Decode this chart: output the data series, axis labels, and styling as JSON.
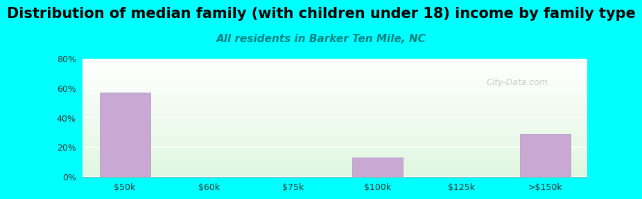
{
  "title": "Distribution of median family (with children under 18) income by family type",
  "subtitle": "All residents in Barker Ten Mile, NC",
  "categories": [
    "$50k",
    "$60k",
    "$75k",
    "$100k",
    "$125k",
    ">$150k"
  ],
  "values": [
    57.1,
    0.0,
    0.0,
    12.9,
    0.0,
    29.0
  ],
  "bar_color": "#c9a8d4",
  "bar_edge_color": "#b090bf",
  "ylim": [
    0,
    80
  ],
  "yticks": [
    0,
    20,
    40,
    60,
    80
  ],
  "ytick_labels": [
    "0%",
    "20%",
    "40%",
    "60%",
    "80%"
  ],
  "background_color": "#00ffff",
  "title_fontsize": 15,
  "subtitle_fontsize": 11,
  "subtitle_color": "#008080",
  "watermark_text": "City-Data.com",
  "watermark_color": "#c0c0c0"
}
